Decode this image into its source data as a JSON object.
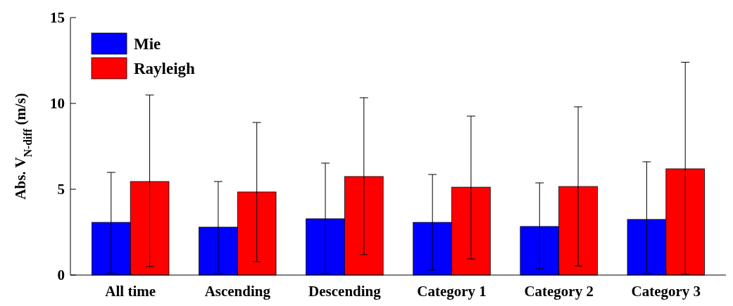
{
  "chart_data": {
    "type": "bar",
    "ylabel": "Abs. V$_{N-diff}$  (m/s)",
    "categories": [
      "All time",
      "Ascending",
      "Descending",
      "Category 1",
      "Category 2",
      "Category 3"
    ],
    "series": [
      {
        "name": "Mie",
        "color": "#0000ff",
        "values": [
          3.07,
          2.79,
          3.28,
          3.07,
          2.83,
          3.24
        ],
        "errors": [
          [
            0.12,
            5.98
          ],
          [
            0.1,
            5.45
          ],
          [
            0.1,
            6.52
          ],
          [
            0.29,
            5.86
          ],
          [
            0.37,
            5.37
          ],
          [
            0.1,
            6.6
          ]
        ]
      },
      {
        "name": "Rayleigh",
        "color": "#ff0000",
        "values": [
          5.45,
          4.84,
          5.74,
          5.12,
          5.16,
          6.19
        ],
        "errors": [
          [
            0.49,
            10.49
          ],
          [
            0.78,
            8.89
          ],
          [
            1.19,
            10.33
          ],
          [
            0.94,
            9.26
          ],
          [
            0.53,
            9.8
          ],
          [
            0.04,
            12.4
          ]
        ]
      }
    ],
    "ylim": [
      0,
      15
    ],
    "yticks": [
      0,
      5,
      10,
      15
    ],
    "legend": "top left"
  }
}
